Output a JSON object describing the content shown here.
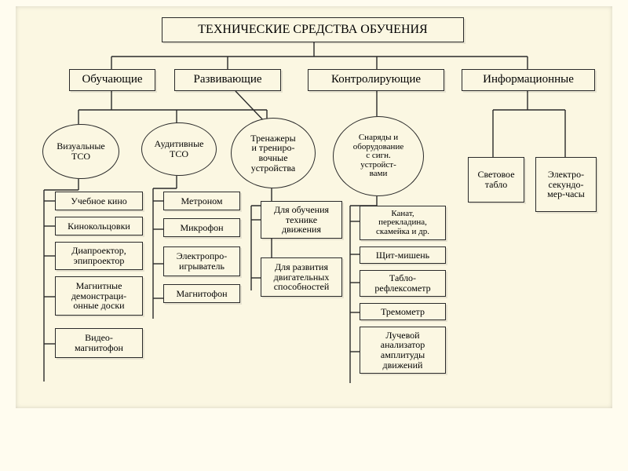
{
  "structure_type": "tree",
  "background_color": "#fbf7e2",
  "border_color": "#2a2a2a",
  "line_color": "#2a2a2a",
  "font_family": "Times New Roman",
  "root": {
    "label": "ТЕХНИЧЕСКИЕ СРЕДСТВА ОБУЧЕНИЯ",
    "fontsize": 16
  },
  "categories": [
    {
      "label": "Обучающие",
      "fontsize": 15
    },
    {
      "label": "Развивающие",
      "fontsize": 15
    },
    {
      "label": "Контролирующие",
      "fontsize": 15
    },
    {
      "label": "Информационные",
      "fontsize": 15
    }
  ],
  "ellipses": [
    {
      "label": "Визуальные\nТСО",
      "fontsize": 12
    },
    {
      "label": "Аудитивные\nТСО",
      "fontsize": 12
    },
    {
      "label": "Тренажеры\nи трениро-\nвочные\nустройства",
      "fontsize": 12
    },
    {
      "label": "Снаряды и\nоборудование\nс сигн.\nустройст-\nвами",
      "fontsize": 11
    }
  ],
  "col_visual": [
    {
      "label": "Учебное кино"
    },
    {
      "label": "Кинокольцовки"
    },
    {
      "label": "Диапроектор,\nэпипроектор"
    },
    {
      "label": "Магнитные\nдемонстраци-\nонные доски"
    },
    {
      "label": "Видео-\nмагнитофон"
    }
  ],
  "col_audio": [
    {
      "label": "Метроном"
    },
    {
      "label": "Микрофон"
    },
    {
      "label": "Электропро-\nигрыватель"
    },
    {
      "label": "Магнитофон"
    }
  ],
  "col_train": [
    {
      "label": "Для обучения\nтехнике\nдвижения"
    },
    {
      "label": "Для развития\nдвигательных\nспособностей"
    }
  ],
  "col_control": [
    {
      "label": "Канат,\nперекладина,\nскамейка и др."
    },
    {
      "label": "Щит-мишень"
    },
    {
      "label": "Табло-\nрефлексометр"
    },
    {
      "label": "Тремометр"
    },
    {
      "label": "Лучевой\nанализатор\nамплитуды\nдвижений"
    }
  ],
  "col_info": [
    {
      "label": "Световое\nтабло"
    },
    {
      "label": "Электро-\nсекундо-\nмер-часы"
    }
  ],
  "item_fontsize": 12
}
